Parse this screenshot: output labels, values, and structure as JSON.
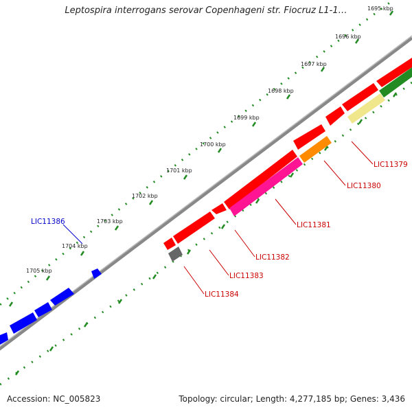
{
  "title": "Leptospira interrogans serovar Copenhageni str. Fiocruz L1-1…",
  "ticks": [
    "1695 kbp",
    "1696 kbp",
    "1697 kbp",
    "1698 kbp",
    "1699 kbp",
    "1700 kbp",
    "1701 kbp",
    "1702 kbp",
    "1703 kbp",
    "1704 kbp",
    "1705 kbp"
  ],
  "genes": {
    "LIC11379": {
      "label": "LIC11379",
      "color": "#cc0000"
    },
    "LIC11380": {
      "label": "LIC11380",
      "color": "#cc0000"
    },
    "LIC11381": {
      "label": "LIC11381",
      "color": "#cc0000"
    },
    "LIC11382": {
      "label": "LIC11382",
      "color": "#cc0000"
    },
    "LIC11383": {
      "label": "LIC11383",
      "color": "#cc0000"
    },
    "LIC11384": {
      "label": "LIC11384",
      "color": "#cc0000"
    },
    "LIC11386": {
      "label": "LIC11386",
      "color": "#0000cc"
    }
  },
  "colors": {
    "forward_strand": "#ff0000",
    "reverse_blue": "#0000ff",
    "pink": "#ff1493",
    "orange": "#ff8c00",
    "khaki": "#f0e68c",
    "green": "#228b22",
    "gray": "#666666",
    "backbone": "#808080",
    "ticks": "#228b22"
  },
  "footer": {
    "accession": "Accession: NC_005823",
    "summary": "Topology: circular; Length: 4,277,185 bp; Genes: 3,436"
  }
}
